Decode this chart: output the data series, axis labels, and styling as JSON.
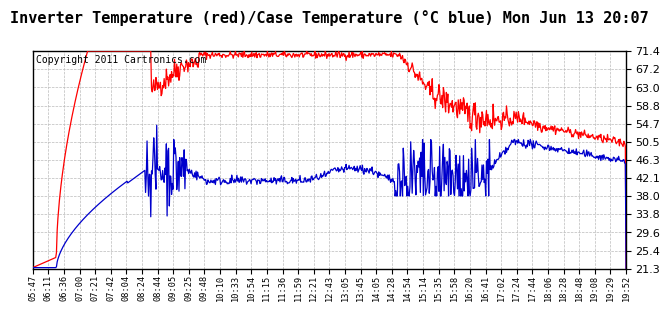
{
  "title": "Inverter Temperature (red)/Case Temperature (°C blue) Mon Jun 13 20:07",
  "copyright": "Copyright 2011 Cartronics.com",
  "yticks": [
    21.3,
    25.4,
    29.6,
    33.8,
    38.0,
    42.1,
    46.3,
    50.5,
    54.7,
    58.8,
    63.0,
    67.2,
    71.4
  ],
  "ymin": 21.3,
  "ymax": 71.4,
  "xtick_labels": [
    "05:47",
    "06:11",
    "06:36",
    "07:00",
    "07:21",
    "07:42",
    "08:04",
    "08:24",
    "08:44",
    "09:05",
    "09:25",
    "09:48",
    "10:10",
    "10:33",
    "10:54",
    "11:15",
    "11:36",
    "11:59",
    "12:21",
    "12:43",
    "13:05",
    "13:45",
    "14:05",
    "14:28",
    "14:54",
    "15:14",
    "15:35",
    "15:58",
    "16:20",
    "16:41",
    "17:02",
    "17:24",
    "17:44",
    "18:06",
    "18:28",
    "18:48",
    "19:08",
    "19:29",
    "19:52"
  ],
  "bg_color": "#ffffff",
  "plot_bg_color": "#ffffff",
  "grid_color": "#bbbbbb",
  "red_color": "#ff0000",
  "blue_color": "#0000cc",
  "title_fontsize": 11,
  "copyright_fontsize": 7,
  "line_width": 0.9
}
